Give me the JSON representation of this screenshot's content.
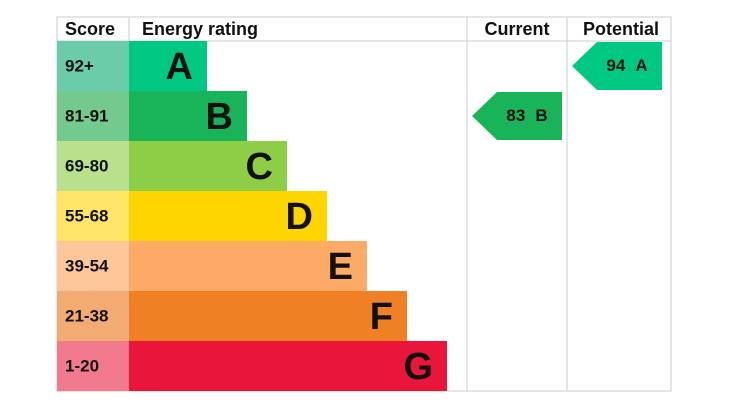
{
  "header": {
    "score": "Score",
    "rating": "Energy rating",
    "current": "Current",
    "potential": "Potential"
  },
  "bands": [
    {
      "score": "92+",
      "letter": "A",
      "color": "#00c781",
      "light": "#6acca8"
    },
    {
      "score": "81-91",
      "letter": "B",
      "color": "#19b459",
      "light": "#73c98e"
    },
    {
      "score": "69-80",
      "letter": "C",
      "color": "#8dce46",
      "light": "#b9e08c"
    },
    {
      "score": "55-68",
      "letter": "D",
      "color": "#ffd500",
      "light": "#ffe566"
    },
    {
      "score": "39-54",
      "letter": "E",
      "color": "#fcaa65",
      "light": "#fdc79a"
    },
    {
      "score": "21-38",
      "letter": "F",
      "color": "#ef8023",
      "light": "#f3ab74"
    },
    {
      "score": "1-20",
      "letter": "G",
      "color": "#e9153b",
      "light": "#f17a8e"
    }
  ],
  "current": {
    "value": 83,
    "letter": "B",
    "color": "#19b459"
  },
  "potential": {
    "value": 94,
    "letter": "A",
    "color": "#00c781"
  }
}
